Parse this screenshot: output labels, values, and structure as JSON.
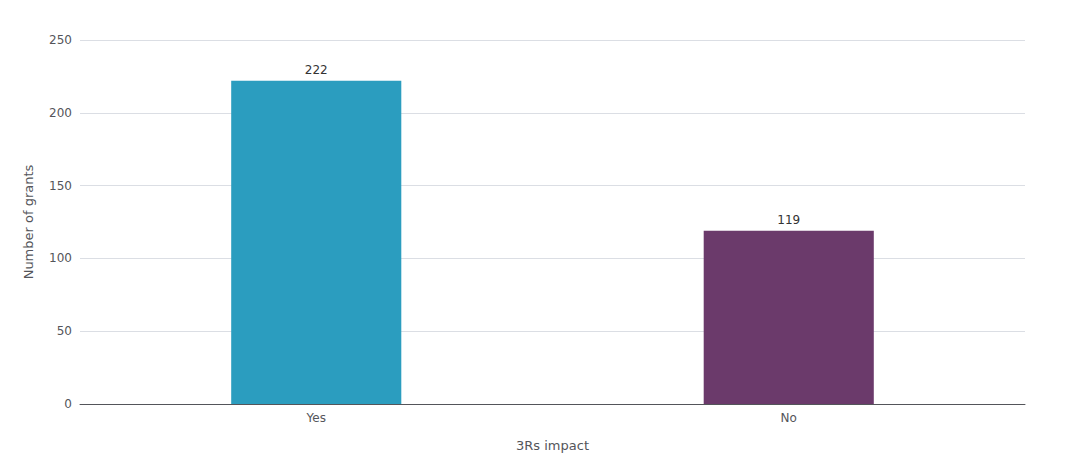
{
  "chart_data": {
    "type": "bar",
    "categories": [
      "Yes",
      "No"
    ],
    "values": [
      222,
      119
    ],
    "colors": [
      "#2B9DBF",
      "#6B3A6B"
    ],
    "xlabel": "3Rs impact",
    "ylabel": "Number of grants",
    "ylim": [
      0,
      250
    ],
    "yticks": [
      0,
      50,
      100,
      150,
      200,
      250
    ],
    "grid": true,
    "data_labels": true
  }
}
